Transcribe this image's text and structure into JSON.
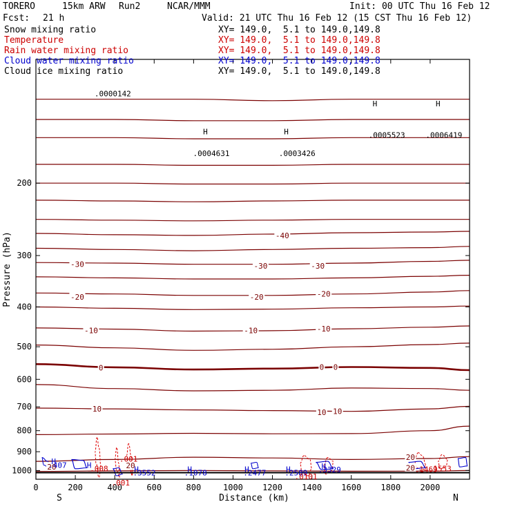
{
  "header": {
    "model": "TORERO",
    "resolution": "15km ARW",
    "run": "Run2",
    "org": "NCAR/MMM",
    "init": "Init: 00 UTC Thu 16 Feb 12",
    "fcst_label": "Fcst:",
    "fcst_value": "21 h",
    "valid": "Valid: 21 UTC Thu 16 Feb 12 (15 CST Thu 16 Feb 12)"
  },
  "legend": [
    {
      "name": "Snow mixing ratio",
      "xy": "XY= 149.0,  5.1 to 149.0,149.8",
      "color": "#000000",
      "xy_color": "#000000"
    },
    {
      "name": "Temperature",
      "xy": "XY= 149.0,  5.1 to 149.0,149.8",
      "color": "#cc0000",
      "xy_color": "#cc0000"
    },
    {
      "name": "Rain water mixing ratio",
      "xy": "XY= 149.0,  5.1 to 149.0,149.8",
      "color": "#cc0000",
      "xy_color": "#cc0000"
    },
    {
      "name": "Cloud water mixing ratio",
      "xy": "XY= 149.0,  5.1 to 149.0,149.8",
      "color": "#0000cc",
      "xy_color": "#0000cc"
    },
    {
      "name": "Cloud ice mixing ratio",
      "xy": "XY= 149.0,  5.1 to 149.0,149.8",
      "color": "#000000",
      "xy_color": "#000000"
    }
  ],
  "chart_data": {
    "type": "line",
    "subtype": "vertical cross-section contour",
    "xlabel": "Distance (km)",
    "ylabel": "Pressure (hPa)",
    "xlim": [
      0,
      2200
    ],
    "ylim": [
      1050,
      100
    ],
    "x_ticks": [
      "0",
      "200",
      "400",
      "600",
      "800",
      "1000",
      "1200",
      "1400",
      "1600",
      "1800",
      "2000"
    ],
    "y_ticks": [
      "200",
      "300",
      "400",
      "500",
      "600",
      "700",
      "800",
      "900",
      "1000"
    ],
    "endpoints": {
      "left": "S",
      "right": "N"
    },
    "temperature_contours": [
      {
        "level": -50,
        "bold": false,
        "x": [
          0,
          400,
          800,
          1200,
          1600,
          2000,
          2200
        ],
        "p": [
          125,
          125,
          125,
          126,
          125,
          125,
          125
        ]
      },
      {
        "level": -50,
        "bold": false,
        "x": [
          0,
          400,
          800,
          1200,
          1600,
          2000,
          2200
        ],
        "p": [
          140,
          140,
          141,
          141,
          140,
          140,
          140
        ]
      },
      {
        "level": -50,
        "bold": false,
        "x": [
          0,
          400,
          800,
          1200,
          1600,
          2000,
          2200
        ],
        "p": [
          155,
          155,
          156,
          156,
          155,
          155,
          155
        ]
      },
      {
        "level": -50,
        "bold": false,
        "x": [
          0,
          400,
          800,
          1200,
          1600,
          2000,
          2200
        ],
        "p": [
          180,
          180,
          181,
          181,
          180,
          180,
          180
        ]
      },
      {
        "level": -50,
        "bold": false,
        "x": [
          0,
          400,
          800,
          1200,
          1600,
          2000,
          2200
        ],
        "p": [
          200,
          200,
          201,
          201,
          200,
          200,
          200
        ]
      },
      {
        "level": -50,
        "bold": false,
        "x": [
          0,
          400,
          800,
          1200,
          1600,
          2000,
          2200
        ],
        "p": [
          220,
          221,
          222,
          221,
          220,
          220,
          220
        ]
      },
      {
        "level": -45,
        "bold": false,
        "x": [
          0,
          400,
          800,
          1200,
          1600,
          2000,
          2200
        ],
        "p": [
          245,
          246,
          247,
          246,
          245,
          245,
          245
        ]
      },
      {
        "level": -40,
        "bold": false,
        "x": [
          0,
          400,
          800,
          1200,
          1600,
          2000,
          2200
        ],
        "p": [
          265,
          267,
          268,
          266,
          264,
          263,
          262
        ]
      },
      {
        "level": -35,
        "bold": false,
        "x": [
          0,
          400,
          800,
          1200,
          1600,
          2000,
          2200
        ],
        "p": [
          288,
          290,
          292,
          290,
          288,
          287,
          285
        ]
      },
      {
        "level": -30,
        "bold": false,
        "x": [
          0,
          400,
          800,
          1200,
          1600,
          2000,
          2200
        ],
        "p": [
          312,
          313,
          315,
          315,
          313,
          310,
          308
        ]
      },
      {
        "level": -25,
        "bold": false,
        "x": [
          0,
          400,
          800,
          1200,
          1600,
          2000,
          2200
        ],
        "p": [
          338,
          340,
          342,
          342,
          340,
          337,
          335
        ]
      },
      {
        "level": -20,
        "bold": false,
        "x": [
          0,
          400,
          800,
          1200,
          1600,
          2000,
          2200
        ],
        "p": [
          370,
          372,
          375,
          375,
          372,
          368,
          365
        ]
      },
      {
        "level": -15,
        "bold": false,
        "x": [
          0,
          400,
          800,
          1200,
          1600,
          2000,
          2200
        ],
        "p": [
          400,
          403,
          406,
          405,
          402,
          400,
          398
        ]
      },
      {
        "level": -10,
        "bold": false,
        "x": [
          0,
          400,
          800,
          1200,
          1600,
          2000,
          2200
        ],
        "p": [
          450,
          453,
          458,
          457,
          452,
          448,
          445
        ]
      },
      {
        "level": -5,
        "bold": false,
        "x": [
          0,
          400,
          800,
          1200,
          1600,
          2000,
          2200
        ],
        "p": [
          495,
          503,
          510,
          507,
          500,
          494,
          490
        ]
      },
      {
        "level": 0,
        "bold": true,
        "x": [
          0,
          400,
          800,
          1200,
          1600,
          2000,
          2200
        ],
        "p": [
          551,
          561,
          568,
          565,
          560,
          563,
          570
        ]
      },
      {
        "level": 5,
        "bold": false,
        "x": [
          0,
          400,
          800,
          1200,
          1600,
          2000,
          2200
        ],
        "p": [
          618,
          632,
          640,
          638,
          630,
          632,
          638
        ]
      },
      {
        "level": 10,
        "bold": false,
        "x": [
          0,
          400,
          800,
          1200,
          1600,
          2000,
          2200
        ],
        "p": [
          705,
          708,
          712,
          715,
          718,
          708,
          698
        ]
      },
      {
        "level": 15,
        "bold": false,
        "x": [
          0,
          400,
          800,
          1200,
          1600,
          2000,
          2200
        ],
        "p": [
          818,
          815,
          812,
          814,
          813,
          800,
          780
        ]
      },
      {
        "level": 20,
        "bold": false,
        "x": [
          0,
          400,
          800,
          1200,
          1600,
          2000,
          2200
        ],
        "p": [
          950,
          940,
          928,
          932,
          940,
          935,
          925
        ]
      },
      {
        "level": 25,
        "bold": false,
        "x": [
          0,
          400,
          800,
          1200,
          1600,
          2000,
          2200
        ],
        "p": [
          1005,
          1002,
          1000,
          1002,
          1004,
          1003,
          1000
        ]
      }
    ],
    "contour_labels": [
      {
        "text": "-40",
        "x": 1250,
        "p": 268,
        "color": "#7a0000"
      },
      {
        "text": "-30",
        "x": 210,
        "p": 315,
        "color": "#7a0000"
      },
      {
        "text": "-30",
        "x": 1140,
        "p": 318,
        "color": "#7a0000"
      },
      {
        "text": "-30",
        "x": 1430,
        "p": 318,
        "color": "#7a0000"
      },
      {
        "text": "-20",
        "x": 210,
        "p": 378,
        "color": "#7a0000"
      },
      {
        "text": "-20",
        "x": 1120,
        "p": 378,
        "color": "#7a0000"
      },
      {
        "text": "-20",
        "x": 1460,
        "p": 372,
        "color": "#7a0000"
      },
      {
        "text": "-10",
        "x": 280,
        "p": 456,
        "color": "#7a0000"
      },
      {
        "text": "-10",
        "x": 1090,
        "p": 456,
        "color": "#7a0000"
      },
      {
        "text": "-10",
        "x": 1460,
        "p": 452,
        "color": "#7a0000"
      },
      {
        "text": "0",
        "x": 330,
        "p": 562,
        "color": "#7a0000"
      },
      {
        "text": "0",
        "x": 1450,
        "p": 560,
        "color": "#7a0000"
      },
      {
        "text": "0",
        "x": 1520,
        "p": 560,
        "color": "#7a0000"
      },
      {
        "text": "10",
        "x": 310,
        "p": 708,
        "color": "#7a0000"
      },
      {
        "text": "10",
        "x": 1450,
        "p": 722,
        "color": "#7a0000"
      },
      {
        "text": "10",
        "x": 1530,
        "p": 718,
        "color": "#7a0000"
      },
      {
        "text": "20",
        "x": 1900,
        "p": 928,
        "color": "#7a0000"
      },
      {
        "text": "20",
        "x": 480,
        "p": 972,
        "color": "#7a0000"
      },
      {
        "text": "20",
        "x": 80,
        "p": 980,
        "color": "#7a0000"
      },
      {
        "text": "20",
        "x": 1900,
        "p": 985,
        "color": "#7a0000"
      }
    ],
    "markers": [
      {
        "text": "H",
        "x": 860,
        "p": 152,
        "color": "#000000"
      },
      {
        "text": ".0004631",
        "x": 890,
        "p": 172,
        "color": "#000000"
      },
      {
        "text": "H",
        "x": 1270,
        "p": 152,
        "color": "#000000"
      },
      {
        "text": ".0003426",
        "x": 1325,
        "p": 172,
        "color": "#000000"
      },
      {
        "text": ".0000142",
        "x": 390,
        "p": 123,
        "color": "#000000"
      },
      {
        "text": "H",
        "x": 1720,
        "p": 130,
        "color": "#000000"
      },
      {
        "text": ".0005523",
        "x": 1780,
        "p": 155,
        "color": "#000000"
      },
      {
        "text": "H",
        "x": 2040,
        "p": 130,
        "color": "#000000"
      },
      {
        "text": ".0006419",
        "x": 2070,
        "p": 155,
        "color": "#000000"
      },
      {
        "text": "H",
        "x": 90,
        "p": 965,
        "color": "#0000cc"
      },
      {
        "text": ".407",
        "x": 110,
        "p": 985,
        "color": "#0000cc"
      },
      {
        "text": "H",
        "x": 270,
        "p": 985,
        "color": "#0000cc"
      },
      {
        "text": "H",
        "x": 510,
        "p": 1008,
        "color": "#0000cc"
      },
      {
        "text": ".3552",
        "x": 550,
        "p": 1028,
        "color": "#0000cc"
      },
      {
        "text": "H",
        "x": 780,
        "p": 1008,
        "color": "#0000cc"
      },
      {
        "text": ".1078",
        "x": 810,
        "p": 1028,
        "color": "#0000cc"
      },
      {
        "text": "H",
        "x": 1070,
        "p": 1008,
        "color": "#0000cc"
      },
      {
        "text": ".2477",
        "x": 1110,
        "p": 1028,
        "color": "#0000cc"
      },
      {
        "text": "H",
        "x": 1280,
        "p": 1008,
        "color": "#0000cc"
      },
      {
        "text": ".2589",
        "x": 1320,
        "p": 1028,
        "color": "#0000cc"
      },
      {
        "text": "H",
        "x": 1460,
        "p": 990,
        "color": "#0000cc"
      },
      {
        "text": ".3329",
        "x": 1490,
        "p": 1010,
        "color": "#0000cc"
      },
      {
        "text": ".001",
        "x": 470,
        "p": 952,
        "color": "#cc0000"
      },
      {
        "text": ".001",
        "x": 430,
        "p": 1088,
        "color": "#cc0000"
      },
      {
        "text": ".008",
        "x": 320,
        "p": 1004,
        "color": "#cc0000"
      },
      {
        "text": ".0101",
        "x": 1370,
        "p": 1050,
        "color": "#cc0000"
      },
      {
        "text": ".1469",
        "x": 1980,
        "p": 1008,
        "color": "#cc0000"
      },
      {
        "text": ".1553",
        "x": 2050,
        "p": 1004,
        "color": "#cc0000"
      }
    ],
    "rain_contours": [
      {
        "x": [
          310,
          300,
          305,
          320,
          330,
          320,
          310
        ],
        "p": [
          830,
          900,
          960,
          1040,
          980,
          880,
          830
        ]
      },
      {
        "x": [
          410,
          400,
          410,
          425,
          420,
          410
        ],
        "p": [
          880,
          940,
          1000,
          1040,
          960,
          880
        ]
      },
      {
        "x": [
          470,
          460,
          475,
          490,
          485,
          470
        ],
        "p": [
          860,
          920,
          990,
          1030,
          930,
          860
        ]
      },
      {
        "x": [
          1360,
          1340,
          1350,
          1380,
          1400,
          1390,
          1360
        ],
        "p": [
          920,
          960,
          1010,
          1030,
          990,
          940,
          920
        ]
      },
      {
        "x": [
          1480,
          1460,
          1470,
          1500,
          1510,
          1480
        ],
        "p": [
          930,
          970,
          1020,
          1000,
          950,
          930
        ]
      },
      {
        "x": [
          1940,
          1920,
          1930,
          1960,
          1980,
          1960,
          1940
        ],
        "p": [
          905,
          940,
          985,
          1000,
          970,
          920,
          905
        ]
      },
      {
        "x": [
          2060,
          2040,
          2050,
          2080,
          2090,
          2060
        ],
        "p": [
          915,
          950,
          990,
          980,
          940,
          915
        ]
      }
    ],
    "cloud_contours": [
      {
        "x": [
          30,
          40,
          70,
          60,
          30
        ],
        "p": [
          930,
          970,
          990,
          950,
          930
        ]
      },
      {
        "x": [
          180,
          240,
          260,
          200,
          180
        ],
        "p": [
          940,
          945,
          985,
          990,
          940
        ]
      },
      {
        "x": [
          390,
          420,
          440,
          410,
          390
        ],
        "p": [
          990,
          985,
          1020,
          1030,
          990
        ]
      },
      {
        "x": [
          1090,
          1120,
          1130,
          1100,
          1090
        ],
        "p": [
          960,
          955,
          985,
          990,
          960
        ]
      },
      {
        "x": [
          1420,
          1480,
          1510,
          1450,
          1420
        ],
        "p": [
          955,
          950,
          990,
          995,
          955
        ]
      },
      {
        "x": [
          1890,
          1950,
          1980,
          1910,
          1890
        ],
        "p": [
          955,
          950,
          985,
          990,
          955
        ]
      },
      {
        "x": [
          2140,
          2180,
          2190,
          2150,
          2140
        ],
        "p": [
          935,
          930,
          975,
          980,
          935
        ]
      }
    ]
  }
}
